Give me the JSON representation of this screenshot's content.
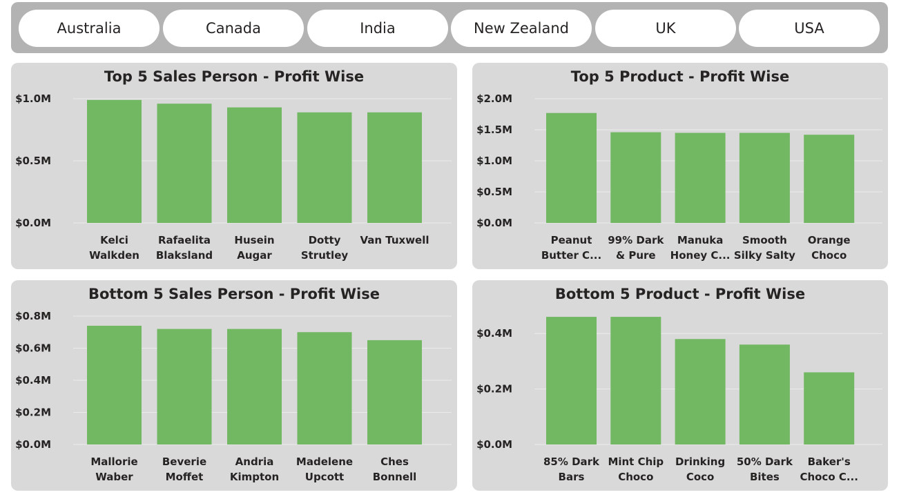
{
  "slicer": {
    "items": [
      {
        "label": "Australia"
      },
      {
        "label": "Canada"
      },
      {
        "label": "India"
      },
      {
        "label": "New Zealand"
      },
      {
        "label": "UK"
      },
      {
        "label": "USA"
      }
    ]
  },
  "colors": {
    "bar": "#72b762",
    "panel_bg": "#d9d9d9",
    "slicer_bg": "#b3b3b3",
    "grid": "#ebebeb",
    "text": "#252423"
  },
  "chart_data": [
    {
      "type": "bar",
      "title": "Top 5 Sales Person - Profit Wise",
      "categories": [
        [
          "Kelci",
          "Walkden"
        ],
        [
          "Rafaelita",
          "Blaksland"
        ],
        [
          "Husein",
          "Augar"
        ],
        [
          "Dotty",
          "Strutley"
        ],
        [
          "Van Tuxwell"
        ]
      ],
      "values": [
        0.99,
        0.96,
        0.93,
        0.89,
        0.89
      ],
      "ylim": [
        0,
        1.0
      ],
      "yticks": [
        0,
        0.5,
        1.0
      ],
      "ytick_labels": [
        "$0.0M",
        "$0.5M",
        "$1.0M"
      ],
      "grid": true
    },
    {
      "type": "bar",
      "title": "Top 5 Product - Profit Wise",
      "categories": [
        [
          "Peanut",
          "Butter C..."
        ],
        [
          "99% Dark",
          "& Pure"
        ],
        [
          "Manuka",
          "Honey C..."
        ],
        [
          "Smooth",
          "Silky Salty"
        ],
        [
          "Orange",
          "Choco"
        ]
      ],
      "values": [
        1.77,
        1.46,
        1.45,
        1.45,
        1.42
      ],
      "ylim": [
        0,
        2.0
      ],
      "yticks": [
        0,
        0.5,
        1.0,
        1.5,
        2.0
      ],
      "ytick_labels": [
        "$0.0M",
        "$0.5M",
        "$1.0M",
        "$1.5M",
        "$2.0M"
      ],
      "grid": true
    },
    {
      "type": "bar",
      "title": "Bottom 5 Sales Person - Profit Wise",
      "categories": [
        [
          "Mallorie",
          "Waber"
        ],
        [
          "Beverie",
          "Moffet"
        ],
        [
          "Andria",
          "Kimpton"
        ],
        [
          "Madelene",
          "Upcott"
        ],
        [
          "Ches",
          "Bonnell"
        ]
      ],
      "values": [
        0.74,
        0.72,
        0.72,
        0.7,
        0.65
      ],
      "ylim": [
        0,
        0.8
      ],
      "yticks": [
        0,
        0.2,
        0.4,
        0.6,
        0.8
      ],
      "ytick_labels": [
        "$0.0M",
        "$0.2M",
        "$0.4M",
        "$0.6M",
        "$0.8M"
      ],
      "grid": true
    },
    {
      "type": "bar",
      "title": "Bottom 5 Product - Profit Wise",
      "categories": [
        [
          "85% Dark",
          "Bars"
        ],
        [
          "Mint Chip",
          "Choco"
        ],
        [
          "Drinking",
          "Coco"
        ],
        [
          "50% Dark",
          "Bites"
        ],
        [
          "Baker's",
          "Choco C..."
        ]
      ],
      "values": [
        0.46,
        0.46,
        0.38,
        0.36,
        0.26
      ],
      "ylim": [
        0,
        0.5
      ],
      "yticks": [
        0,
        0.2,
        0.4
      ],
      "ytick_labels": [
        "$0.0M",
        "$0.2M",
        "$0.4M"
      ],
      "grid": true
    }
  ]
}
